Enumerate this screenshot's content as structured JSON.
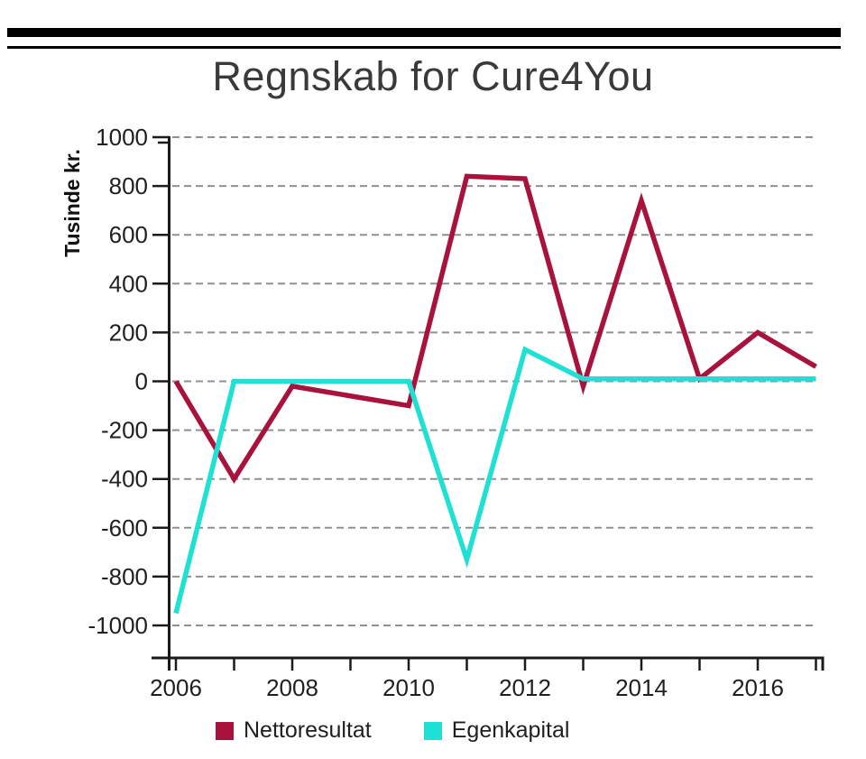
{
  "chart_data": {
    "type": "line",
    "title": "Regnskab for Cure4You",
    "ylabel": "Tusinde kr.",
    "x": [
      2006,
      2007,
      2008,
      2009,
      2010,
      2011,
      2012,
      2013,
      2014,
      2015,
      2016,
      2017
    ],
    "x_tick_labels": [
      "2006",
      "2008",
      "2010",
      "2012",
      "2014",
      "2016"
    ],
    "x_label_years": [
      2006,
      2008,
      2010,
      2012,
      2014,
      2016
    ],
    "ylim": [
      -1000,
      1000
    ],
    "ytick_interval": 200,
    "grid": "horizontal-dashed",
    "legend_position": "bottom",
    "series": [
      {
        "name": "Nettoresultat",
        "color": "#A8123C",
        "values": [
          0,
          -400,
          -20,
          -60,
          -100,
          840,
          830,
          -20,
          740,
          10,
          200,
          60
        ]
      },
      {
        "name": "Egenkapital",
        "color": "#1FE1D3",
        "values": [
          -950,
          0,
          0,
          0,
          0,
          -730,
          130,
          10,
          10,
          10,
          10,
          10
        ]
      }
    ],
    "colors": {
      "grid": "#909090",
      "axis": "#1a1a1a",
      "tick_text": "#1f1f1f",
      "title_text": "#3a3a3a"
    }
  }
}
